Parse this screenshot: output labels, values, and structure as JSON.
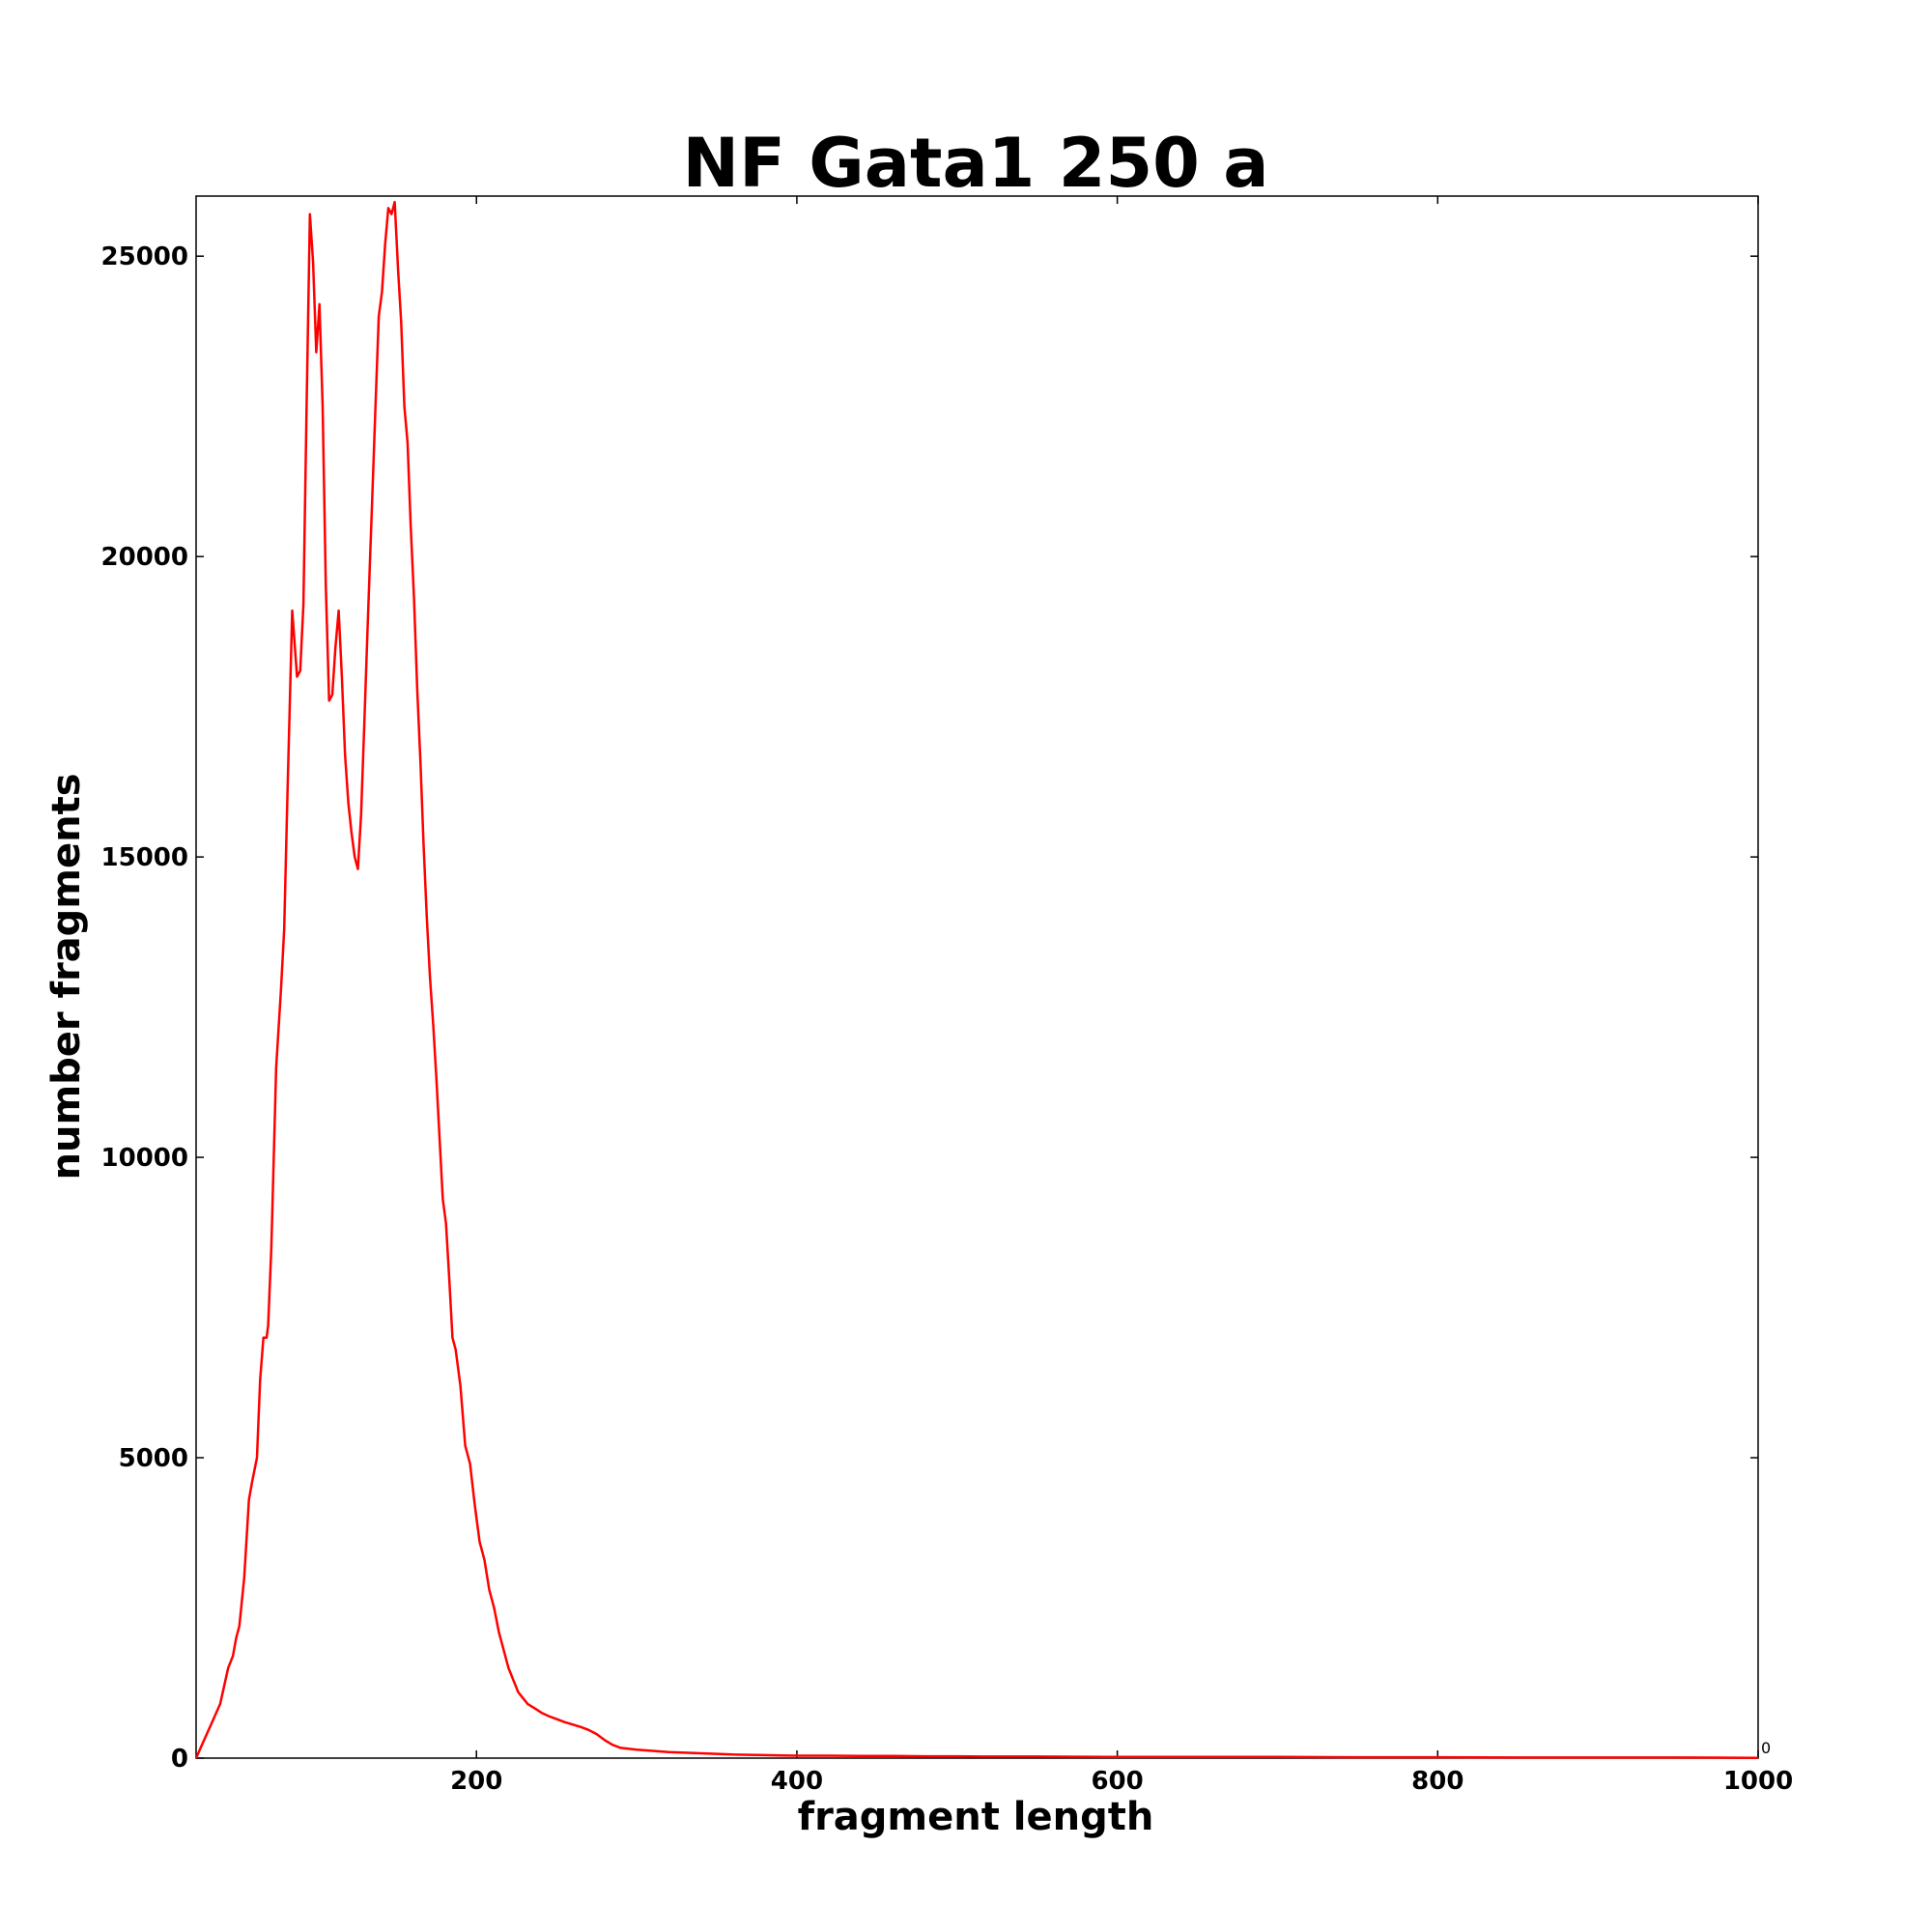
{
  "chart_data": {
    "type": "line",
    "title": "NF Gata1 250 a",
    "xlabel": "fragment length",
    "ylabel": "number fragments",
    "xlim": [
      25,
      1000
    ],
    "ylim": [
      0,
      26000
    ],
    "xticks": [
      200,
      400,
      600,
      800,
      1000
    ],
    "xtick_labels": [
      "200",
      "400",
      "600",
      "800",
      "1000"
    ],
    "yticks": [
      0,
      5000,
      10000,
      15000,
      20000,
      25000
    ],
    "ytick_labels": [
      "0",
      "5000",
      "10000",
      "15000",
      "20000",
      "25000"
    ],
    "offset_label": "0",
    "grid": false,
    "legend": "none",
    "color": "#ff0000",
    "series": [
      {
        "x": [
          25,
          30,
          35,
          40,
          45,
          48,
          50,
          52,
          55,
          58,
          60,
          63,
          65,
          67,
          69,
          70,
          72,
          75,
          78,
          80,
          82,
          85,
          88,
          90,
          92,
          94,
          96,
          98,
          100,
          102,
          104,
          106,
          108,
          110,
          112,
          114,
          116,
          118,
          120,
          122,
          124,
          126,
          128,
          130,
          132,
          135,
          137,
          139,
          141,
          143,
          145,
          147,
          149,
          151,
          153,
          155,
          157,
          159,
          161,
          163,
          165,
          167,
          169,
          171,
          173,
          175,
          177,
          179,
          181,
          183,
          185,
          187,
          190,
          193,
          196,
          199,
          202,
          205,
          208,
          211,
          214,
          217,
          220,
          223,
          226,
          229,
          232,
          235,
          238,
          241,
          245,
          250,
          255,
          260,
          265,
          270,
          275,
          280,
          285,
          290,
          300,
          310,
          320,
          330,
          340,
          350,
          360,
          370,
          380,
          390,
          400,
          420,
          440,
          460,
          480,
          500,
          520,
          550,
          600,
          650,
          700,
          750,
          800,
          850,
          900,
          950,
          1000
        ],
        "y": [
          0,
          300,
          600,
          900,
          1500,
          1700,
          2000,
          2200,
          3000,
          4300,
          4600,
          5000,
          6300,
          7000,
          7000,
          7200,
          8500,
          11500,
          12800,
          13800,
          16000,
          19100,
          18000,
          18100,
          19200,
          22500,
          25700,
          24900,
          23400,
          24200,
          22500,
          19500,
          17600,
          17700,
          18500,
          19100,
          18000,
          16700,
          15900,
          15400,
          15000,
          14800,
          15700,
          17200,
          18800,
          21000,
          22500,
          24000,
          24400,
          25200,
          25800,
          25700,
          25900,
          24800,
          23900,
          22500,
          21900,
          20500,
          19300,
          17800,
          16600,
          15200,
          14000,
          13000,
          12200,
          11300,
          10300,
          9300,
          8900,
          8000,
          7000,
          6800,
          6200,
          5200,
          4900,
          4200,
          3600,
          3300,
          2800,
          2500,
          2100,
          1800,
          1500,
          1300,
          1100,
          1000,
          900,
          850,
          800,
          750,
          700,
          650,
          600,
          560,
          520,
          470,
          400,
          300,
          220,
          170,
          140,
          120,
          100,
          90,
          80,
          70,
          60,
          55,
          50,
          45,
          40,
          40,
          35,
          35,
          30,
          30,
          25,
          25,
          20,
          20,
          20,
          15,
          15,
          10,
          10,
          10,
          5
        ]
      }
    ]
  }
}
